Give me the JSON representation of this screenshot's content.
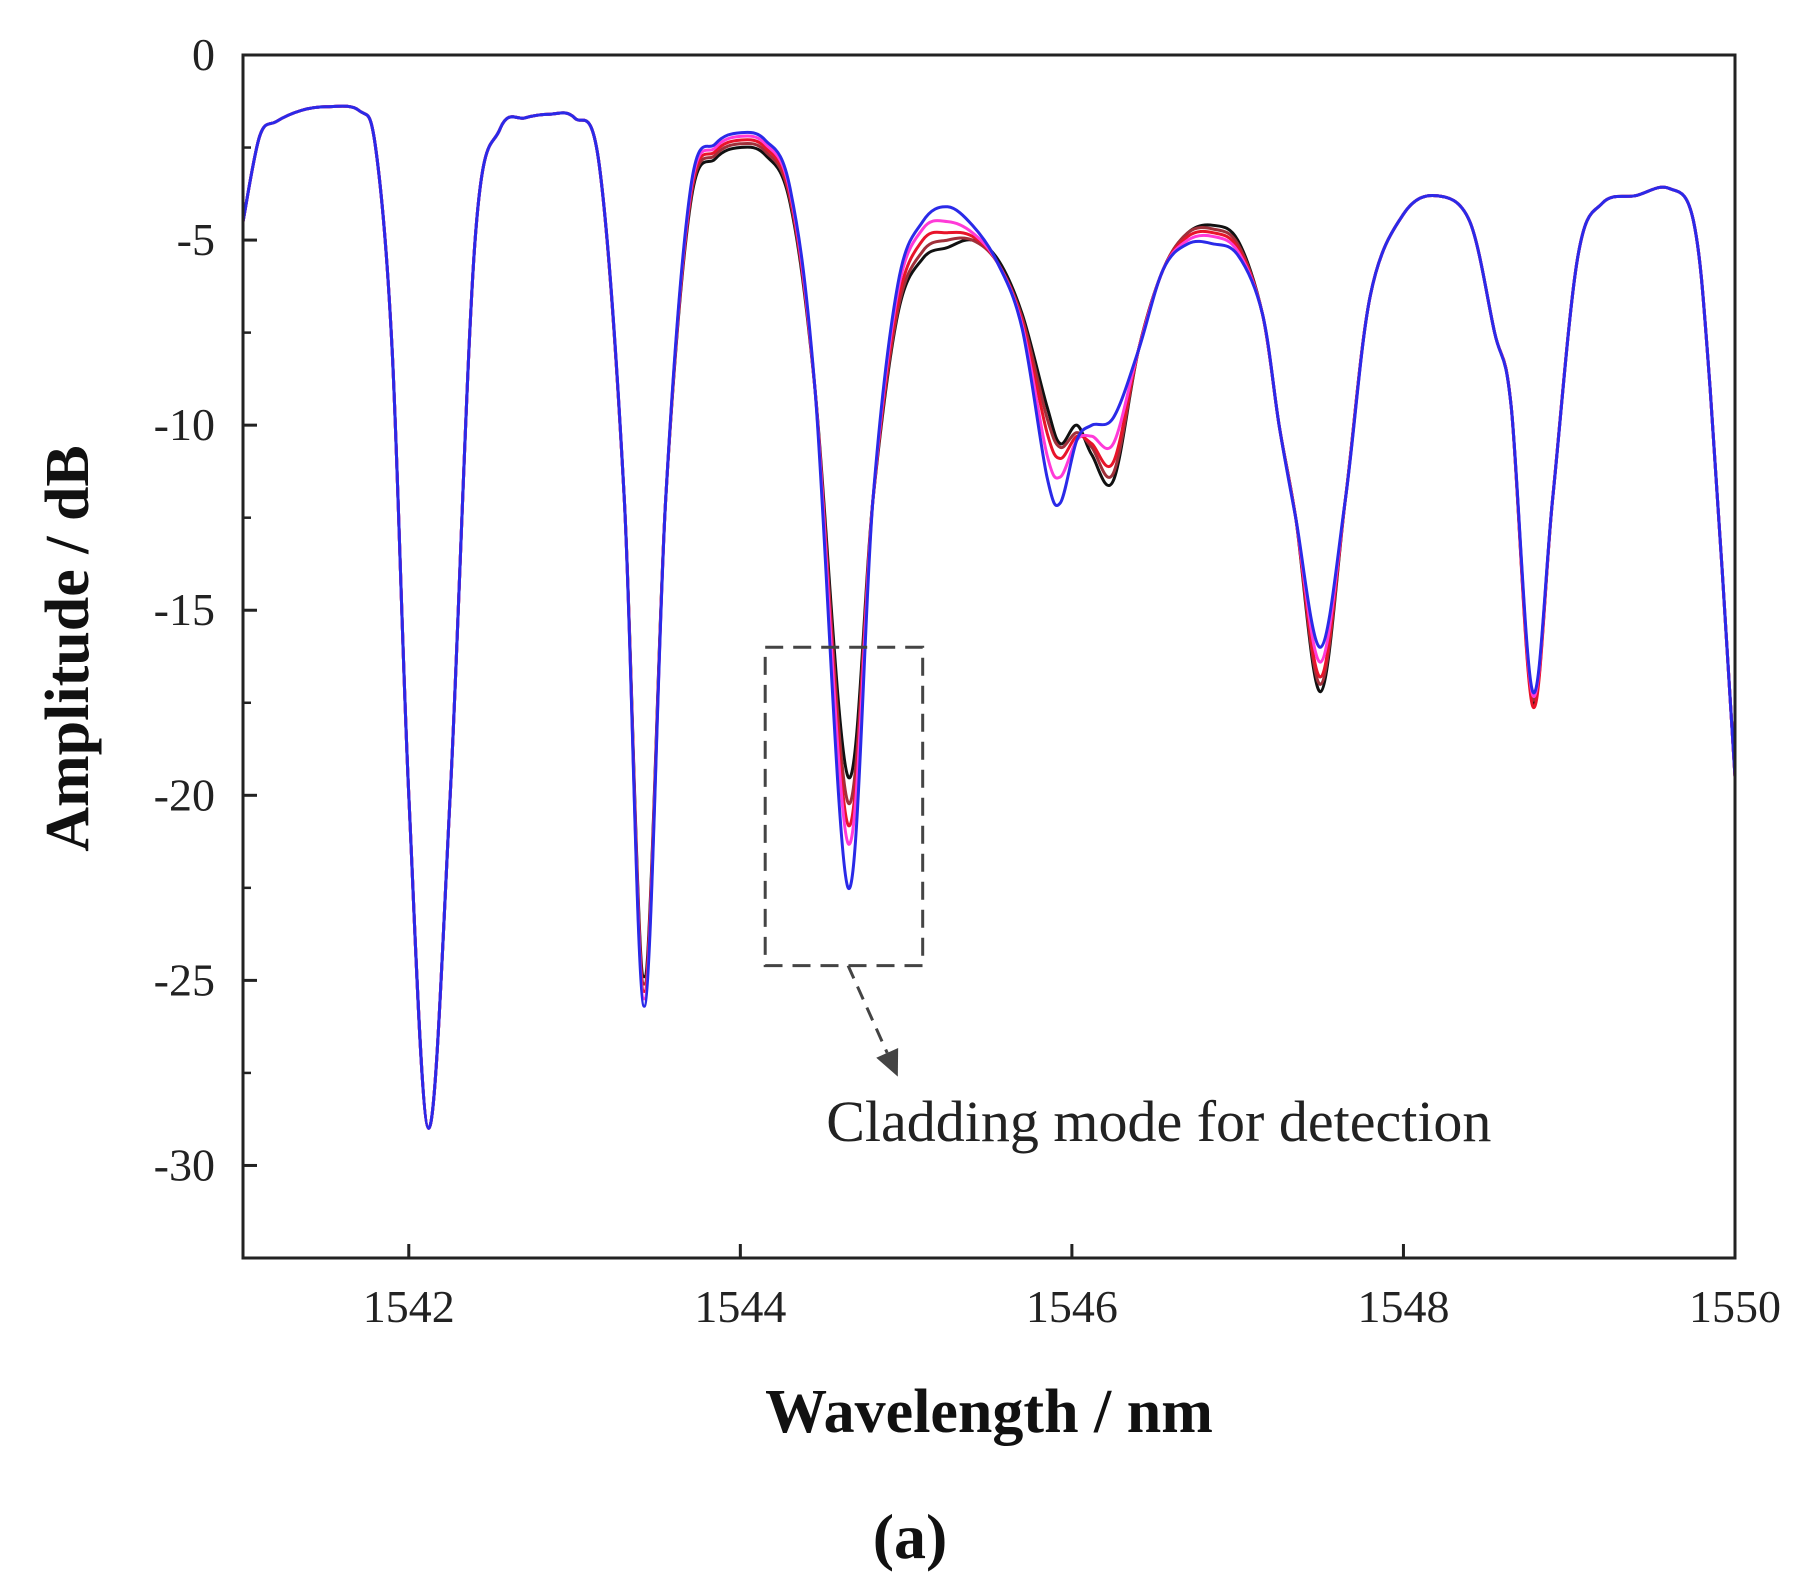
{
  "chart_data": {
    "type": "line",
    "title": "",
    "xlabel": "Wavelength / nm",
    "ylabel": "Amplitude / dB",
    "xlim": [
      1541,
      1550
    ],
    "ylim": [
      -32.5,
      0
    ],
    "xticks": [
      1542,
      1544,
      1546,
      1548,
      1550
    ],
    "xtick_labels": [
      "1542",
      "1544",
      "1546",
      "1548",
      "1550"
    ],
    "yticks": [
      0,
      -5,
      -10,
      -15,
      -20,
      -25,
      -30
    ],
    "ytick_labels": [
      "0",
      "-5",
      "-10",
      "-15",
      "-20",
      "-25",
      "-30"
    ],
    "grid": false,
    "panel_label": "(a)",
    "annotation": {
      "text": "Cladding mode  for  detection",
      "box_x": [
        1544.15,
        1545.1
      ],
      "box_y": [
        -24.6,
        -16.0
      ],
      "arrow_from": [
        1544.65,
        -24.6
      ],
      "arrow_to": [
        1544.95,
        -27.6
      ],
      "text_anchor": [
        1544.5,
        -28.8
      ]
    },
    "series": [
      {
        "name": "black",
        "color": "#111111",
        "x": [
          1541,
          1541.1,
          1541.2,
          1541.35,
          1541.5,
          1541.7,
          1541.8,
          1541.9,
          1542.0,
          1542.12,
          1542.25,
          1542.4,
          1542.55,
          1542.7,
          1542.85,
          1543.0,
          1543.15,
          1543.3,
          1543.42,
          1543.55,
          1543.7,
          1543.85,
          1544.0,
          1544.15,
          1544.3,
          1544.45,
          1544.65,
          1544.8,
          1544.95,
          1545.1,
          1545.25,
          1545.4,
          1545.55,
          1545.7,
          1545.85,
          1545.93,
          1546.03,
          1546.12,
          1546.25,
          1546.4,
          1546.55,
          1546.7,
          1546.85,
          1547.0,
          1547.15,
          1547.25,
          1547.35,
          1547.5,
          1547.65,
          1547.8,
          1548.0,
          1548.2,
          1548.4,
          1548.55,
          1548.65,
          1548.78,
          1548.9,
          1549.05,
          1549.2,
          1549.4,
          1549.6,
          1549.75,
          1549.85,
          1550.0
        ],
        "y": [
          -4.5,
          -2.2,
          -1.8,
          -1.5,
          -1.4,
          -1.5,
          -2.5,
          -8,
          -20,
          -29.0,
          -20,
          -5,
          -2.0,
          -1.7,
          -1.6,
          -1.7,
          -3.0,
          -12,
          -24.9,
          -12,
          -4.0,
          -2.8,
          -2.5,
          -2.7,
          -4.0,
          -9.0,
          -19.5,
          -12.0,
          -7.0,
          -5.5,
          -5.2,
          -5.0,
          -5.5,
          -7.0,
          -9.5,
          -10.5,
          -10.0,
          -10.8,
          -11.5,
          -8.0,
          -5.8,
          -4.8,
          -4.6,
          -5.0,
          -7.0,
          -10.0,
          -12.5,
          -17.2,
          -12.0,
          -6.5,
          -4.3,
          -3.8,
          -4.5,
          -7.5,
          -9.5,
          -17.5,
          -12.0,
          -5.5,
          -4.0,
          -3.8,
          -3.6,
          -4.5,
          -9.0,
          -19.5
        ]
      },
      {
        "name": "brown",
        "color": "#a0303a",
        "x": [
          1541,
          1541.1,
          1541.2,
          1541.35,
          1541.5,
          1541.7,
          1541.8,
          1541.9,
          1542.0,
          1542.12,
          1542.25,
          1542.4,
          1542.55,
          1542.7,
          1542.85,
          1543.0,
          1543.15,
          1543.3,
          1543.42,
          1543.55,
          1543.7,
          1543.85,
          1544.0,
          1544.15,
          1544.3,
          1544.45,
          1544.65,
          1544.8,
          1544.95,
          1545.1,
          1545.25,
          1545.4,
          1545.55,
          1545.7,
          1545.85,
          1545.93,
          1546.03,
          1546.12,
          1546.25,
          1546.4,
          1546.55,
          1546.7,
          1546.85,
          1547.0,
          1547.15,
          1547.25,
          1547.35,
          1547.5,
          1547.65,
          1547.8,
          1548.0,
          1548.2,
          1548.4,
          1548.55,
          1548.65,
          1548.78,
          1548.9,
          1549.05,
          1549.2,
          1549.4,
          1549.6,
          1549.75,
          1549.85,
          1550.0
        ],
        "y": [
          -4.5,
          -2.2,
          -1.8,
          -1.5,
          -1.4,
          -1.5,
          -2.5,
          -8,
          -20,
          -29.0,
          -20,
          -5,
          -2.0,
          -1.7,
          -1.6,
          -1.7,
          -3.0,
          -12,
          -25.1,
          -12,
          -3.9,
          -2.7,
          -2.4,
          -2.6,
          -3.9,
          -9.0,
          -20.2,
          -12.0,
          -6.9,
          -5.3,
          -5.0,
          -5.0,
          -5.6,
          -7.1,
          -9.8,
          -10.6,
          -10.2,
          -10.6,
          -11.3,
          -8.0,
          -5.8,
          -4.8,
          -4.7,
          -5.1,
          -7.0,
          -10.0,
          -12.5,
          -17.0,
          -12.0,
          -6.5,
          -4.3,
          -3.8,
          -4.5,
          -7.5,
          -9.5,
          -17.4,
          -12.0,
          -5.5,
          -4.0,
          -3.8,
          -3.6,
          -4.5,
          -9.0,
          -19.5
        ]
      },
      {
        "name": "red",
        "color": "#e8142a",
        "x": [
          1541,
          1541.1,
          1541.2,
          1541.35,
          1541.5,
          1541.7,
          1541.8,
          1541.9,
          1542.0,
          1542.12,
          1542.25,
          1542.4,
          1542.55,
          1542.7,
          1542.85,
          1543.0,
          1543.15,
          1543.3,
          1543.42,
          1543.55,
          1543.7,
          1543.85,
          1544.0,
          1544.15,
          1544.3,
          1544.45,
          1544.65,
          1544.8,
          1544.95,
          1545.1,
          1545.25,
          1545.4,
          1545.55,
          1545.7,
          1545.85,
          1545.93,
          1546.03,
          1546.12,
          1546.25,
          1546.4,
          1546.55,
          1546.7,
          1546.85,
          1547.0,
          1547.15,
          1547.25,
          1547.35,
          1547.5,
          1547.65,
          1547.8,
          1548.0,
          1548.2,
          1548.4,
          1548.55,
          1548.65,
          1548.78,
          1548.9,
          1549.05,
          1549.2,
          1549.4,
          1549.6,
          1549.75,
          1549.85,
          1550.0
        ],
        "y": [
          -4.5,
          -2.2,
          -1.8,
          -1.5,
          -1.4,
          -1.5,
          -2.5,
          -8,
          -20,
          -29.0,
          -20,
          -5,
          -2.0,
          -1.7,
          -1.6,
          -1.7,
          -3.0,
          -12,
          -25.3,
          -12,
          -3.8,
          -2.6,
          -2.3,
          -2.5,
          -3.8,
          -9.0,
          -20.8,
          -12.0,
          -6.7,
          -5.0,
          -4.8,
          -4.9,
          -5.6,
          -7.2,
          -10.2,
          -10.9,
          -10.3,
          -10.5,
          -11.0,
          -8.0,
          -5.8,
          -4.9,
          -4.8,
          -5.2,
          -7.0,
          -10.0,
          -12.5,
          -16.8,
          -12.0,
          -6.5,
          -4.3,
          -3.8,
          -4.5,
          -7.5,
          -9.5,
          -17.6,
          -12.0,
          -5.5,
          -4.0,
          -3.8,
          -3.6,
          -4.5,
          -9.0,
          -19.5
        ]
      },
      {
        "name": "magenta",
        "color": "#ff3ad8",
        "x": [
          1541,
          1541.1,
          1541.2,
          1541.35,
          1541.5,
          1541.7,
          1541.8,
          1541.9,
          1542.0,
          1542.12,
          1542.25,
          1542.4,
          1542.55,
          1542.7,
          1542.85,
          1543.0,
          1543.15,
          1543.3,
          1543.42,
          1543.55,
          1543.7,
          1543.85,
          1544.0,
          1544.15,
          1544.3,
          1544.45,
          1544.65,
          1544.8,
          1544.95,
          1545.1,
          1545.25,
          1545.4,
          1545.55,
          1545.7,
          1545.85,
          1545.93,
          1546.03,
          1546.12,
          1546.25,
          1546.4,
          1546.55,
          1546.7,
          1546.85,
          1547.0,
          1547.15,
          1547.25,
          1547.35,
          1547.5,
          1547.65,
          1547.8,
          1548.0,
          1548.2,
          1548.4,
          1548.55,
          1548.65,
          1548.78,
          1548.9,
          1549.05,
          1549.2,
          1549.4,
          1549.6,
          1549.75,
          1549.85,
          1550.0
        ],
        "y": [
          -4.5,
          -2.2,
          -1.8,
          -1.5,
          -1.4,
          -1.5,
          -2.5,
          -8,
          -20,
          -29.0,
          -20,
          -5,
          -2.0,
          -1.7,
          -1.6,
          -1.7,
          -3.0,
          -12,
          -25.5,
          -12,
          -3.7,
          -2.5,
          -2.2,
          -2.4,
          -3.7,
          -9.0,
          -21.3,
          -12.0,
          -6.4,
          -4.7,
          -4.5,
          -4.8,
          -5.6,
          -7.3,
          -10.8,
          -11.4,
          -10.4,
          -10.3,
          -10.5,
          -8.0,
          -5.8,
          -5.0,
          -4.9,
          -5.3,
          -7.0,
          -10.0,
          -12.5,
          -16.4,
          -12.0,
          -6.5,
          -4.3,
          -3.8,
          -4.5,
          -7.5,
          -9.5,
          -17.3,
          -12.0,
          -5.5,
          -4.0,
          -3.8,
          -3.6,
          -4.5,
          -9.0,
          -19.5
        ]
      },
      {
        "name": "blue",
        "color": "#2a2ae8",
        "x": [
          1541,
          1541.1,
          1541.2,
          1541.35,
          1541.5,
          1541.7,
          1541.8,
          1541.9,
          1542.0,
          1542.12,
          1542.25,
          1542.4,
          1542.55,
          1542.7,
          1542.85,
          1543.0,
          1543.15,
          1543.3,
          1543.42,
          1543.55,
          1543.7,
          1543.85,
          1544.0,
          1544.15,
          1544.3,
          1544.45,
          1544.65,
          1544.8,
          1544.95,
          1545.1,
          1545.25,
          1545.4,
          1545.55,
          1545.7,
          1545.85,
          1545.93,
          1546.03,
          1546.12,
          1546.25,
          1546.4,
          1546.55,
          1546.7,
          1546.85,
          1547.0,
          1547.15,
          1547.25,
          1547.35,
          1547.5,
          1547.65,
          1547.8,
          1548.0,
          1548.2,
          1548.4,
          1548.55,
          1548.65,
          1548.78,
          1548.9,
          1549.05,
          1549.2,
          1549.4,
          1549.6,
          1549.75,
          1549.85,
          1550.0
        ],
        "y": [
          -4.5,
          -2.2,
          -1.8,
          -1.5,
          -1.4,
          -1.5,
          -2.5,
          -8,
          -20,
          -29.0,
          -20,
          -5,
          -2.0,
          -1.7,
          -1.6,
          -1.7,
          -3.0,
          -12,
          -25.7,
          -12,
          -3.6,
          -2.4,
          -2.1,
          -2.3,
          -3.6,
          -9.0,
          -22.5,
          -12.0,
          -6.2,
          -4.5,
          -4.1,
          -4.6,
          -5.6,
          -7.4,
          -11.4,
          -12.1,
          -10.4,
          -10.0,
          -9.8,
          -8.0,
          -5.8,
          -5.1,
          -5.1,
          -5.4,
          -7.0,
          -10.0,
          -12.5,
          -16.0,
          -12.0,
          -6.5,
          -4.3,
          -3.8,
          -4.5,
          -7.5,
          -9.5,
          -17.2,
          -12.0,
          -5.5,
          -4.0,
          -3.8,
          -3.6,
          -4.5,
          -9.0,
          -19.5
        ]
      }
    ]
  }
}
